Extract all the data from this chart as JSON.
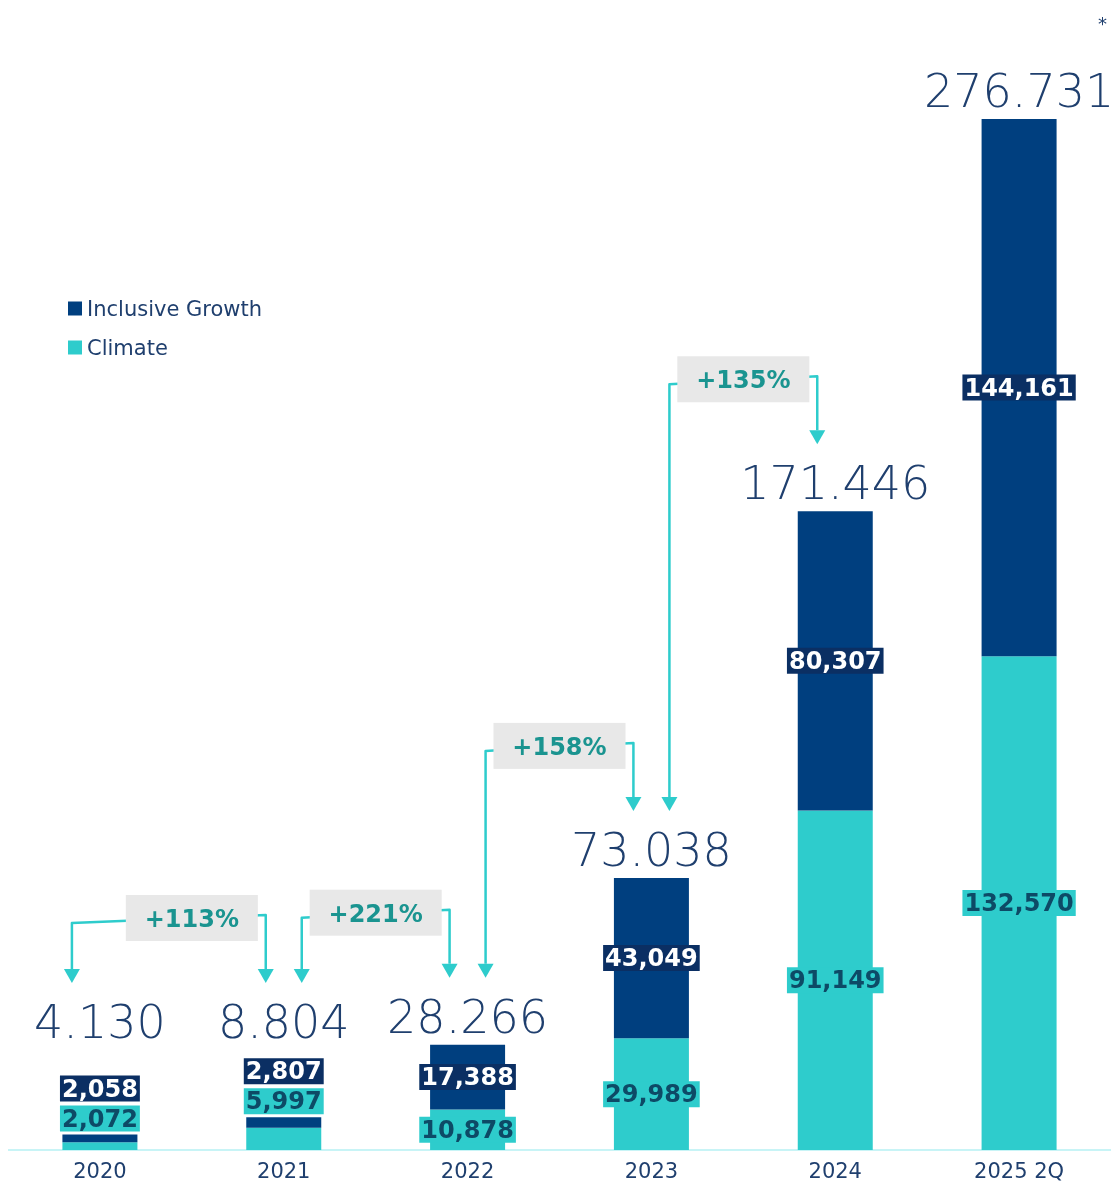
{
  "chart_data": {
    "type": "bar",
    "stacked": true,
    "categories": [
      "2020",
      "2021",
      "2022",
      "2023",
      "2024",
      "2025 2Q"
    ],
    "series": [
      {
        "name": "Climate",
        "color": "#2ecccc",
        "values": [
          2072,
          5997,
          10878,
          29989,
          91149,
          132570
        ],
        "value_labels": [
          "2,072",
          "5,997",
          "10,878",
          "29,989",
          "91,149",
          "132,570"
        ]
      },
      {
        "name": "Inclusive Growth",
        "color": "#003f7f",
        "values": [
          2058,
          2807,
          17388,
          43049,
          80307,
          144161
        ],
        "value_labels": [
          "2,058",
          "2,807",
          "17,388",
          "43,049",
          "80,307",
          "144,161"
        ]
      }
    ],
    "legend": "top left",
    "annotations": [
      {
        "text": "4.130",
        "x": "2020",
        "y": 4130
      },
      {
        "text": "8.804",
        "x": "2021",
        "y": 8804
      },
      {
        "text": "28.266",
        "x": "2022",
        "y": 28266
      },
      {
        "text": "73.038",
        "x": "2023",
        "y": 73038
      },
      {
        "text": "171.446",
        "x": "2024",
        "y": 171446
      },
      {
        "text": "276.731",
        "x": "2025 2Q",
        "y": 276731
      },
      "+113%",
      "+221%",
      "+158%",
      "+135%",
      "*"
    ]
  }
}
